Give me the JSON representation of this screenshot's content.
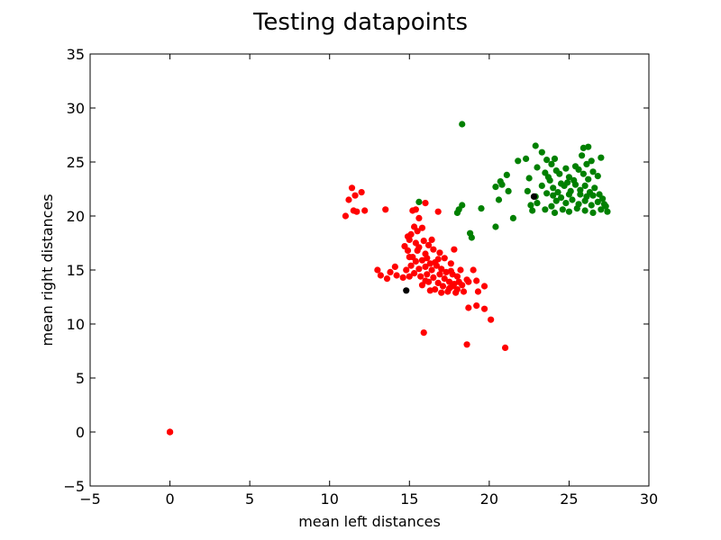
{
  "chart_data": {
    "type": "scatter",
    "title": "Testing datapoints",
    "xlabel": "mean left distances",
    "ylabel": "mean right distances",
    "xlim": [
      -5,
      30
    ],
    "ylim": [
      -5,
      35
    ],
    "grid": false,
    "xticks": [
      -5,
      0,
      5,
      10,
      15,
      20,
      25,
      30
    ],
    "yticks": [
      -5,
      0,
      5,
      10,
      15,
      20,
      25,
      30,
      35
    ],
    "xtick_labels": [
      "−5",
      "0",
      "5",
      "10",
      "15",
      "20",
      "25",
      "30"
    ],
    "ytick_labels": [
      "−5",
      "0",
      "5",
      "10",
      "15",
      "20",
      "25",
      "30",
      "35"
    ],
    "series": [
      {
        "color": "#ff0000",
        "points": [
          [
            0,
            0
          ],
          [
            0,
            0
          ],
          [
            0,
            0
          ],
          [
            0,
            0
          ],
          [
            11.0,
            20.0
          ],
          [
            11.2,
            21.5
          ],
          [
            11.4,
            22.6
          ],
          [
            11.6,
            21.9
          ],
          [
            12.0,
            22.2
          ],
          [
            11.5,
            20.5
          ],
          [
            11.7,
            20.4
          ],
          [
            12.2,
            20.5
          ],
          [
            13.5,
            20.6
          ],
          [
            15.2,
            20.5
          ],
          [
            15.4,
            20.6
          ],
          [
            16.8,
            20.4
          ],
          [
            16.0,
            21.2
          ],
          [
            15.6,
            19.8
          ],
          [
            15.3,
            19.0
          ],
          [
            15.5,
            18.6
          ],
          [
            15.8,
            18.9
          ],
          [
            14.9,
            18.1
          ],
          [
            15.1,
            18.3
          ],
          [
            14.7,
            17.2
          ],
          [
            15.0,
            17.8
          ],
          [
            15.4,
            17.5
          ],
          [
            15.9,
            17.7
          ],
          [
            16.2,
            17.3
          ],
          [
            15.5,
            16.8
          ],
          [
            16.0,
            16.5
          ],
          [
            16.5,
            16.9
          ],
          [
            16.8,
            16.0
          ],
          [
            16.3,
            15.6
          ],
          [
            15.8,
            15.9
          ],
          [
            15.2,
            16.2
          ],
          [
            14.9,
            16.8
          ],
          [
            15.1,
            15.4
          ],
          [
            15.6,
            15.1
          ],
          [
            16.0,
            15.3
          ],
          [
            16.4,
            15.0
          ],
          [
            16.7,
            15.4
          ],
          [
            17.0,
            15.1
          ],
          [
            17.3,
            14.8
          ],
          [
            17.6,
            14.9
          ],
          [
            16.9,
            14.6
          ],
          [
            16.5,
            14.3
          ],
          [
            16.1,
            14.6
          ],
          [
            15.7,
            14.4
          ],
          [
            15.3,
            14.7
          ],
          [
            17.2,
            14.2
          ],
          [
            17.5,
            13.9
          ],
          [
            17.8,
            13.7
          ],
          [
            18.1,
            13.9
          ],
          [
            18.3,
            13.6
          ],
          [
            17.1,
            13.5
          ],
          [
            16.8,
            13.8
          ],
          [
            16.6,
            13.2
          ],
          [
            17.4,
            13.0
          ],
          [
            17.9,
            12.9
          ],
          [
            18.4,
            13.0
          ],
          [
            18.6,
            14.1
          ],
          [
            18.0,
            14.4
          ],
          [
            17.7,
            14.6
          ],
          [
            18.2,
            15.0
          ],
          [
            17.6,
            15.6
          ],
          [
            17.2,
            16.1
          ],
          [
            16.9,
            16.6
          ],
          [
            16.4,
            17.8
          ],
          [
            17.8,
            16.9
          ],
          [
            16.6,
            15.7
          ],
          [
            16.2,
            13.9
          ],
          [
            16.0,
            14.0
          ],
          [
            15.8,
            13.6
          ],
          [
            16.3,
            13.1
          ],
          [
            17.0,
            12.9
          ],
          [
            17.5,
            13.3
          ],
          [
            18.0,
            13.2
          ],
          [
            18.7,
            13.9
          ],
          [
            17.7,
            13.5
          ],
          [
            13.0,
            15.0
          ],
          [
            13.2,
            14.5
          ],
          [
            13.8,
            14.8
          ],
          [
            14.1,
            15.3
          ],
          [
            14.2,
            14.5
          ],
          [
            13.6,
            14.2
          ],
          [
            14.6,
            14.3
          ],
          [
            15.0,
            14.4
          ],
          [
            19.0,
            15.0
          ],
          [
            19.2,
            14.0
          ],
          [
            19.7,
            13.5
          ],
          [
            19.3,
            13.0
          ],
          [
            19.2,
            11.7
          ],
          [
            18.7,
            11.5
          ],
          [
            19.7,
            11.4
          ],
          [
            20.1,
            10.4
          ],
          [
            18.6,
            8.1
          ],
          [
            21.0,
            7.8
          ],
          [
            15.9,
            9.2
          ],
          [
            15.0,
            16.2
          ],
          [
            15.6,
            17.1
          ],
          [
            16.1,
            16.1
          ],
          [
            15.4,
            15.8
          ],
          [
            14.8,
            15.0
          ]
        ]
      },
      {
        "color": "#008000",
        "points": [
          [
            18.3,
            28.5
          ],
          [
            15.6,
            21.3
          ],
          [
            18.0,
            20.3
          ],
          [
            18.3,
            21.0
          ],
          [
            18.1,
            20.6
          ],
          [
            18.8,
            18.4
          ],
          [
            18.9,
            18.0
          ],
          [
            19.5,
            20.7
          ],
          [
            20.4,
            19.0
          ],
          [
            20.4,
            22.7
          ],
          [
            20.6,
            21.5
          ],
          [
            20.7,
            23.2
          ],
          [
            20.8,
            22.9
          ],
          [
            21.2,
            22.3
          ],
          [
            21.5,
            19.8
          ],
          [
            21.1,
            23.8
          ],
          [
            21.8,
            25.1
          ],
          [
            22.3,
            25.3
          ],
          [
            22.5,
            23.5
          ],
          [
            22.9,
            26.5
          ],
          [
            23.0,
            24.5
          ],
          [
            22.4,
            22.3
          ],
          [
            22.7,
            20.5
          ],
          [
            22.9,
            21.8
          ],
          [
            23.3,
            25.9
          ],
          [
            23.6,
            25.2
          ],
          [
            23.9,
            24.8
          ],
          [
            24.1,
            25.3
          ],
          [
            23.5,
            24.0
          ],
          [
            23.8,
            23.3
          ],
          [
            24.4,
            23.9
          ],
          [
            24.8,
            24.4
          ],
          [
            25.0,
            23.6
          ],
          [
            23.3,
            22.8
          ],
          [
            23.6,
            22.1
          ],
          [
            24.0,
            22.6
          ],
          [
            24.3,
            22.2
          ],
          [
            24.7,
            22.8
          ],
          [
            25.1,
            22.3
          ],
          [
            25.4,
            22.9
          ],
          [
            25.7,
            22.4
          ],
          [
            26.0,
            22.8
          ],
          [
            26.3,
            22.2
          ],
          [
            26.6,
            22.6
          ],
          [
            26.9,
            22.0
          ],
          [
            27.1,
            21.6
          ],
          [
            26.8,
            21.3
          ],
          [
            26.4,
            21.0
          ],
          [
            26.0,
            21.4
          ],
          [
            25.6,
            21.1
          ],
          [
            25.2,
            21.5
          ],
          [
            24.8,
            21.2
          ],
          [
            24.5,
            21.7
          ],
          [
            24.2,
            21.4
          ],
          [
            23.9,
            20.9
          ],
          [
            23.5,
            20.6
          ],
          [
            24.1,
            20.3
          ],
          [
            24.6,
            20.6
          ],
          [
            25.0,
            20.4
          ],
          [
            25.5,
            20.7
          ],
          [
            26.0,
            20.5
          ],
          [
            26.5,
            20.3
          ],
          [
            27.0,
            20.6
          ],
          [
            27.3,
            20.9
          ],
          [
            27.4,
            20.4
          ],
          [
            26.2,
            23.4
          ],
          [
            25.9,
            23.9
          ],
          [
            25.6,
            24.3
          ],
          [
            26.1,
            24.8
          ],
          [
            26.4,
            25.1
          ],
          [
            25.8,
            25.6
          ],
          [
            26.2,
            26.4
          ],
          [
            25.9,
            26.3
          ],
          [
            26.5,
            24.1
          ],
          [
            26.8,
            23.7
          ],
          [
            27.0,
            25.4
          ],
          [
            23.0,
            21.2
          ],
          [
            22.6,
            21.0
          ],
          [
            24.9,
            23.1
          ],
          [
            25.3,
            23.3
          ],
          [
            25.7,
            22.0
          ],
          [
            26.1,
            21.8
          ],
          [
            26.5,
            21.9
          ],
          [
            25.0,
            22.0
          ],
          [
            24.5,
            23.0
          ],
          [
            23.7,
            23.6
          ],
          [
            24.2,
            24.2
          ],
          [
            25.4,
            24.6
          ],
          [
            27.2,
            21.1
          ],
          [
            24.0,
            21.9
          ]
        ]
      },
      {
        "color": "#000000",
        "points": [
          [
            14.8,
            13.1
          ],
          [
            22.8,
            21.8
          ]
        ]
      }
    ]
  }
}
